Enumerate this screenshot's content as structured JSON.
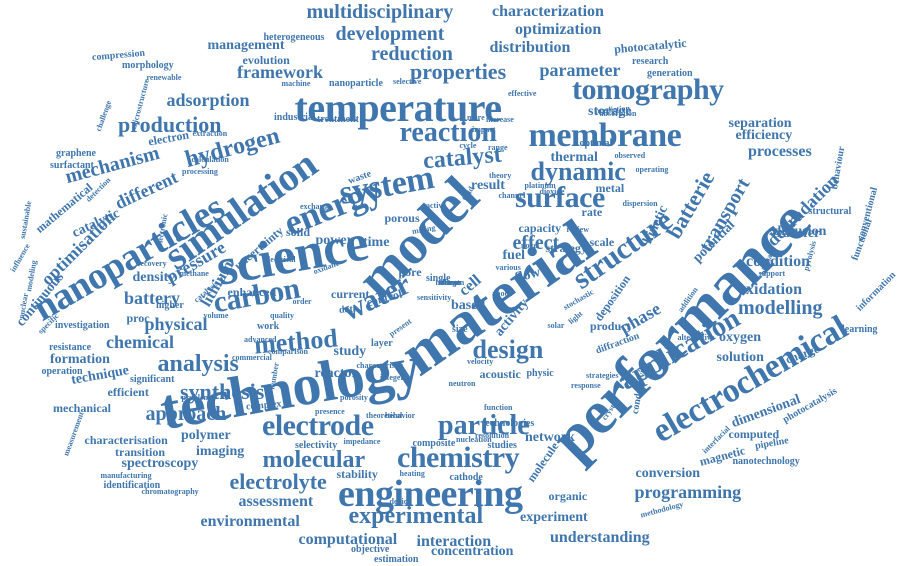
{
  "word_cloud": {
    "color": "#3f76ad",
    "words": [
      {
        "text": "performance",
        "w": 10
      },
      {
        "text": "technology",
        "w": 10
      },
      {
        "text": "material",
        "w": 10
      },
      {
        "text": "model",
        "w": 9
      },
      {
        "text": "science",
        "w": 9
      },
      {
        "text": "nanoparticles",
        "w": 8
      },
      {
        "text": "temperature",
        "w": 8
      },
      {
        "text": "engineering",
        "w": 8
      },
      {
        "text": "electrochemical",
        "w": 8
      },
      {
        "text": "simulation",
        "w": 8
      },
      {
        "text": "energy",
        "w": 7
      },
      {
        "text": "system",
        "w": 7
      },
      {
        "text": "surface",
        "w": 7
      },
      {
        "text": "membrane",
        "w": 7
      },
      {
        "text": "structure",
        "w": 7
      },
      {
        "text": "application",
        "w": 7
      },
      {
        "text": "tomography",
        "w": 7
      },
      {
        "text": "chemistry",
        "w": 7
      },
      {
        "text": "electrode",
        "w": 7
      },
      {
        "text": "particle",
        "w": 7
      },
      {
        "text": "carbon",
        "w": 7
      },
      {
        "text": "water",
        "w": 7
      },
      {
        "text": "method",
        "w": 6
      },
      {
        "text": "reaction",
        "w": 6
      },
      {
        "text": "dynamic",
        "w": 6
      },
      {
        "text": "catalyst",
        "w": 6
      },
      {
        "text": "design",
        "w": 6
      },
      {
        "text": "experimental",
        "w": 6
      },
      {
        "text": "molecular",
        "w": 6
      },
      {
        "text": "hydrogen",
        "w": 6
      },
      {
        "text": "analysis",
        "w": 6
      },
      {
        "text": "synthesis",
        "w": 6
      },
      {
        "text": "production",
        "w": 6
      },
      {
        "text": "properties",
        "w": 6
      },
      {
        "text": "electrolyte",
        "w": 5
      },
      {
        "text": "approach",
        "w": 5
      },
      {
        "text": "mechanism",
        "w": 5
      },
      {
        "text": "modelling",
        "w": 5
      },
      {
        "text": "batterie",
        "w": 5
      },
      {
        "text": "transport",
        "w": 5
      },
      {
        "text": "optimisation",
        "w": 5
      },
      {
        "text": "pressure",
        "w": 5
      },
      {
        "text": "different",
        "w": 5
      },
      {
        "text": "multidisciplinary",
        "w": 5
      },
      {
        "text": "development",
        "w": 5
      },
      {
        "text": "reduction",
        "w": 5
      },
      {
        "text": "framework",
        "w": 5
      },
      {
        "text": "adsorption",
        "w": 5
      },
      {
        "text": "distribution",
        "w": 4
      },
      {
        "text": "characterization",
        "w": 4
      },
      {
        "text": "optimization",
        "w": 4
      },
      {
        "text": "parameter",
        "w": 4
      },
      {
        "text": "programming",
        "w": 4
      },
      {
        "text": "assessment",
        "w": 4
      },
      {
        "text": "environmental",
        "w": 4
      },
      {
        "text": "computational",
        "w": 4
      },
      {
        "text": "interaction",
        "w": 4
      },
      {
        "text": "understanding",
        "w": 4
      },
      {
        "text": "experiment",
        "w": 4
      },
      {
        "text": "concentration",
        "w": 3
      },
      {
        "text": "physical",
        "w": 4
      },
      {
        "text": "chemical",
        "w": 4
      },
      {
        "text": "battery",
        "w": 4
      },
      {
        "text": "polymer",
        "w": 3
      },
      {
        "text": "imaging",
        "w": 3
      },
      {
        "text": "spectroscopy",
        "w": 3
      },
      {
        "text": "technique",
        "w": 3
      },
      {
        "text": "phase",
        "w": 4
      },
      {
        "text": "oxidation",
        "w": 4
      },
      {
        "text": "condition",
        "w": 4
      },
      {
        "text": "degradation",
        "w": 4
      },
      {
        "text": "processes",
        "w": 4
      },
      {
        "text": "separation",
        "w": 3
      },
      {
        "text": "efficiency",
        "w": 3
      },
      {
        "text": "solution",
        "w": 3
      },
      {
        "text": "oxygen",
        "w": 3
      },
      {
        "text": "network",
        "w": 3
      },
      {
        "text": "conversion",
        "w": 3
      },
      {
        "text": "dimensional",
        "w": 3
      },
      {
        "text": "computed",
        "w": 3
      },
      {
        "text": "magnetic",
        "w": 3
      },
      {
        "text": "effect",
        "w": 4
      },
      {
        "text": "flow",
        "w": 3
      },
      {
        "text": "fuel",
        "w": 3
      },
      {
        "text": "cell",
        "w": 3
      },
      {
        "text": "result",
        "w": 3
      },
      {
        "text": "thermal",
        "w": 3
      },
      {
        "text": "storage",
        "w": 3
      },
      {
        "text": "lithium",
        "w": 3
      },
      {
        "text": "study",
        "w": 3
      },
      {
        "text": "reactor",
        "w": 3
      },
      {
        "text": "efficient",
        "w": 3
      },
      {
        "text": "formation",
        "w": 3
      },
      {
        "text": "mechanical",
        "w": 3
      },
      {
        "text": "management",
        "w": 3
      },
      {
        "text": "evolution",
        "w": 3
      },
      {
        "text": "photocatalytic",
        "w": 3
      },
      {
        "text": "generation",
        "w": 2
      },
      {
        "text": "power",
        "w": 3
      },
      {
        "text": "time",
        "w": 3
      },
      {
        "text": "density",
        "w": 3
      },
      {
        "text": "kinetic",
        "w": 3
      },
      {
        "text": "potential",
        "w": 3
      },
      {
        "text": "diffusion",
        "w": 3
      },
      {
        "text": "transfer",
        "w": 3
      },
      {
        "text": "catalytic",
        "w": 3
      },
      {
        "text": "continuous",
        "w": 3
      },
      {
        "text": "mathematical",
        "w": 3
      },
      {
        "text": "uncertainty",
        "w": 3
      },
      {
        "text": "based",
        "w": 3
      },
      {
        "text": "proc",
        "w": 3
      },
      {
        "text": "organic",
        "w": 3
      },
      {
        "text": "stability",
        "w": 3
      },
      {
        "text": "cathode",
        "w": 3
      },
      {
        "text": "deposition",
        "w": 2
      },
      {
        "text": "pipeline",
        "w": 3
      },
      {
        "text": "identification",
        "w": 2
      },
      {
        "text": "characterisation",
        "w": 2
      },
      {
        "text": "transition",
        "w": 2
      },
      {
        "text": "significant",
        "w": 2
      },
      {
        "text": "resistance",
        "w": 2
      },
      {
        "text": "operation",
        "w": 2
      },
      {
        "text": "investigation",
        "w": 2
      },
      {
        "text": "electron",
        "w": 2
      },
      {
        "text": "graphene",
        "w": 2
      },
      {
        "text": "surfactant",
        "w": 2
      },
      {
        "text": "morphology",
        "w": 2
      },
      {
        "text": "heterogeneous",
        "w": 2
      },
      {
        "text": "compression",
        "w": 2
      },
      {
        "text": "nanoparticle",
        "w": 2
      },
      {
        "text": "research",
        "w": 2
      },
      {
        "text": "treatment",
        "w": 2
      },
      {
        "text": "industrial",
        "w": 2
      },
      {
        "text": "enhanced",
        "w": 2
      },
      {
        "text": "capacity",
        "w": 2
      },
      {
        "text": "scale",
        "w": 2
      },
      {
        "text": "single",
        "w": 2
      },
      {
        "text": "pore",
        "w": 2
      },
      {
        "text": "size",
        "w": 2
      },
      {
        "text": "solid",
        "w": 2
      },
      {
        "text": "porous",
        "w": 2
      },
      {
        "text": "waste",
        "w": 2
      },
      {
        "text": "current",
        "w": 2
      },
      {
        "text": "control",
        "w": 2
      },
      {
        "text": "layer",
        "w": 2
      },
      {
        "text": "data",
        "w": 2
      },
      {
        "text": "work",
        "w": 2
      },
      {
        "text": "higher",
        "w": 2
      },
      {
        "text": "complex",
        "w": 2
      },
      {
        "text": "diffraction",
        "w": 2
      },
      {
        "text": "product",
        "w": 2
      },
      {
        "text": "acoustic",
        "w": 2
      },
      {
        "text": "physic",
        "w": 2
      },
      {
        "text": "charge",
        "w": 2
      },
      {
        "text": "learning",
        "w": 2
      },
      {
        "text": "structural",
        "w": 2
      },
      {
        "text": "behaviour",
        "w": 2
      },
      {
        "text": "functional",
        "w": 2
      },
      {
        "text": "conventional",
        "w": 2
      },
      {
        "text": "information",
        "w": 2
      },
      {
        "text": "photocatalysis",
        "w": 2
      },
      {
        "text": "nanotechnology",
        "w": 2
      },
      {
        "text": "methodology",
        "w": 2
      },
      {
        "text": "conductivity",
        "w": 2
      },
      {
        "text": "technologies",
        "w": 1
      },
      {
        "text": "composite",
        "w": 2
      },
      {
        "text": "studies",
        "w": 2
      },
      {
        "text": "objective",
        "w": 2
      },
      {
        "text": "estimation",
        "w": 2
      },
      {
        "text": "manufacturing",
        "w": 2
      },
      {
        "text": "chromatography",
        "w": 2
      },
      {
        "text": "selectivity",
        "w": 1
      },
      {
        "text": "impedance",
        "w": 1
      },
      {
        "text": "theoretical",
        "w": 2
      },
      {
        "text": "behavior",
        "w": 1
      },
      {
        "text": "presence",
        "w": 1
      },
      {
        "text": "problem",
        "w": 1
      },
      {
        "text": "function",
        "w": 1
      },
      {
        "text": "molecule",
        "w": 1
      },
      {
        "text": "strategy",
        "w": 1
      },
      {
        "text": "activity",
        "w": 2
      },
      {
        "text": "rate",
        "w": 2
      },
      {
        "text": "metal",
        "w": 3
      },
      {
        "text": "optimal",
        "w": 2
      },
      {
        "text": "channel",
        "w": 2
      },
      {
        "text": "exchange",
        "w": 2
      },
      {
        "text": "active",
        "w": 1
      },
      {
        "text": "impact",
        "w": 1
      },
      {
        "text": "range",
        "w": 1
      },
      {
        "text": "increase",
        "w": 1
      },
      {
        "text": "effective",
        "w": 1
      },
      {
        "text": "selective",
        "w": 1
      },
      {
        "text": "machine",
        "w": 1
      },
      {
        "text": "renewable",
        "w": 1
      },
      {
        "text": "prediction",
        "w": 1
      },
      {
        "text": "absorption",
        "w": 1
      },
      {
        "text": "observed",
        "w": 1
      },
      {
        "text": "operating",
        "w": 1
      },
      {
        "text": "dispersion",
        "w": 1
      },
      {
        "text": "pyrolysis",
        "w": 1
      },
      {
        "text": "biomass",
        "w": 1
      },
      {
        "text": "support",
        "w": 1
      },
      {
        "text": "interfacial",
        "w": 1
      },
      {
        "text": "alternative",
        "w": 1
      },
      {
        "text": "strategies",
        "w": 1
      },
      {
        "text": "stochastic",
        "w": 1
      },
      {
        "text": "addition",
        "w": 1
      },
      {
        "text": "resolution",
        "w": 1
      },
      {
        "text": "nucleation",
        "w": 1
      },
      {
        "text": "methane",
        "w": 1
      },
      {
        "text": "electrical",
        "w": 1
      },
      {
        "text": "recovery",
        "w": 1
      },
      {
        "text": "nuclear",
        "w": 1
      },
      {
        "text": "specific",
        "w": 1
      },
      {
        "text": "challenge",
        "w": 1
      },
      {
        "text": "sustainable",
        "w": 1
      },
      {
        "text": "modeling",
        "w": 2
      },
      {
        "text": "measurement",
        "w": 1
      },
      {
        "text": "microstructure",
        "w": 1
      },
      {
        "text": "extraction",
        "w": 1
      },
      {
        "text": "calculation",
        "w": 1
      },
      {
        "text": "processing",
        "w": 1
      },
      {
        "text": "electronic",
        "w": 1
      },
      {
        "text": "detection",
        "w": 1
      },
      {
        "text": "influence",
        "w": 1
      },
      {
        "text": "catalysis",
        "w": 1
      },
      {
        "text": "advanced",
        "w": 1
      },
      {
        "text": "commercial",
        "w": 1
      },
      {
        "text": "comparison",
        "w": 1
      },
      {
        "text": "number",
        "w": 1
      },
      {
        "text": "integer",
        "w": 1
      },
      {
        "text": "porosity",
        "w": 1
      },
      {
        "text": "response",
        "w": 1
      },
      {
        "text": "crystal",
        "w": 1
      },
      {
        "text": "device",
        "w": 1
      },
      {
        "text": "heating",
        "w": 1
      },
      {
        "text": "oxidant",
        "w": 1
      },
      {
        "text": "present",
        "w": 1
      },
      {
        "text": "characteristic",
        "w": 1
      },
      {
        "text": "sensitivity",
        "w": 1
      },
      {
        "text": "mixing",
        "w": 1
      },
      {
        "text": "novel",
        "w": 1
      },
      {
        "text": "review",
        "w": 1
      },
      {
        "text": "light",
        "w": 1
      },
      {
        "text": "solar",
        "w": 1
      },
      {
        "text": "anode",
        "w": 1
      },
      {
        "text": "various",
        "w": 1
      },
      {
        "text": "theory",
        "w": 1
      },
      {
        "text": "cycle",
        "w": 1
      },
      {
        "text": "field",
        "w": 1
      },
      {
        "text": "more",
        "w": 1
      },
      {
        "text": "dioxide",
        "w": 1
      },
      {
        "text": "platinum",
        "w": 1
      },
      {
        "text": "velocity",
        "w": 1
      },
      {
        "text": "neutron",
        "w": 1
      },
      {
        "text": "quality",
        "w": 1
      },
      {
        "text": "volume",
        "w": 1
      },
      {
        "text": "order",
        "w": 1
      },
      {
        "text": "direct",
        "w": 1
      },
      {
        "text": "wave",
        "w": 1
      },
      {
        "text": "silicon",
        "w": 1
      },
      {
        "text": "nitrogen",
        "w": 1
      },
      {
        "text": "nature",
        "w": 1
      }
    ]
  }
}
